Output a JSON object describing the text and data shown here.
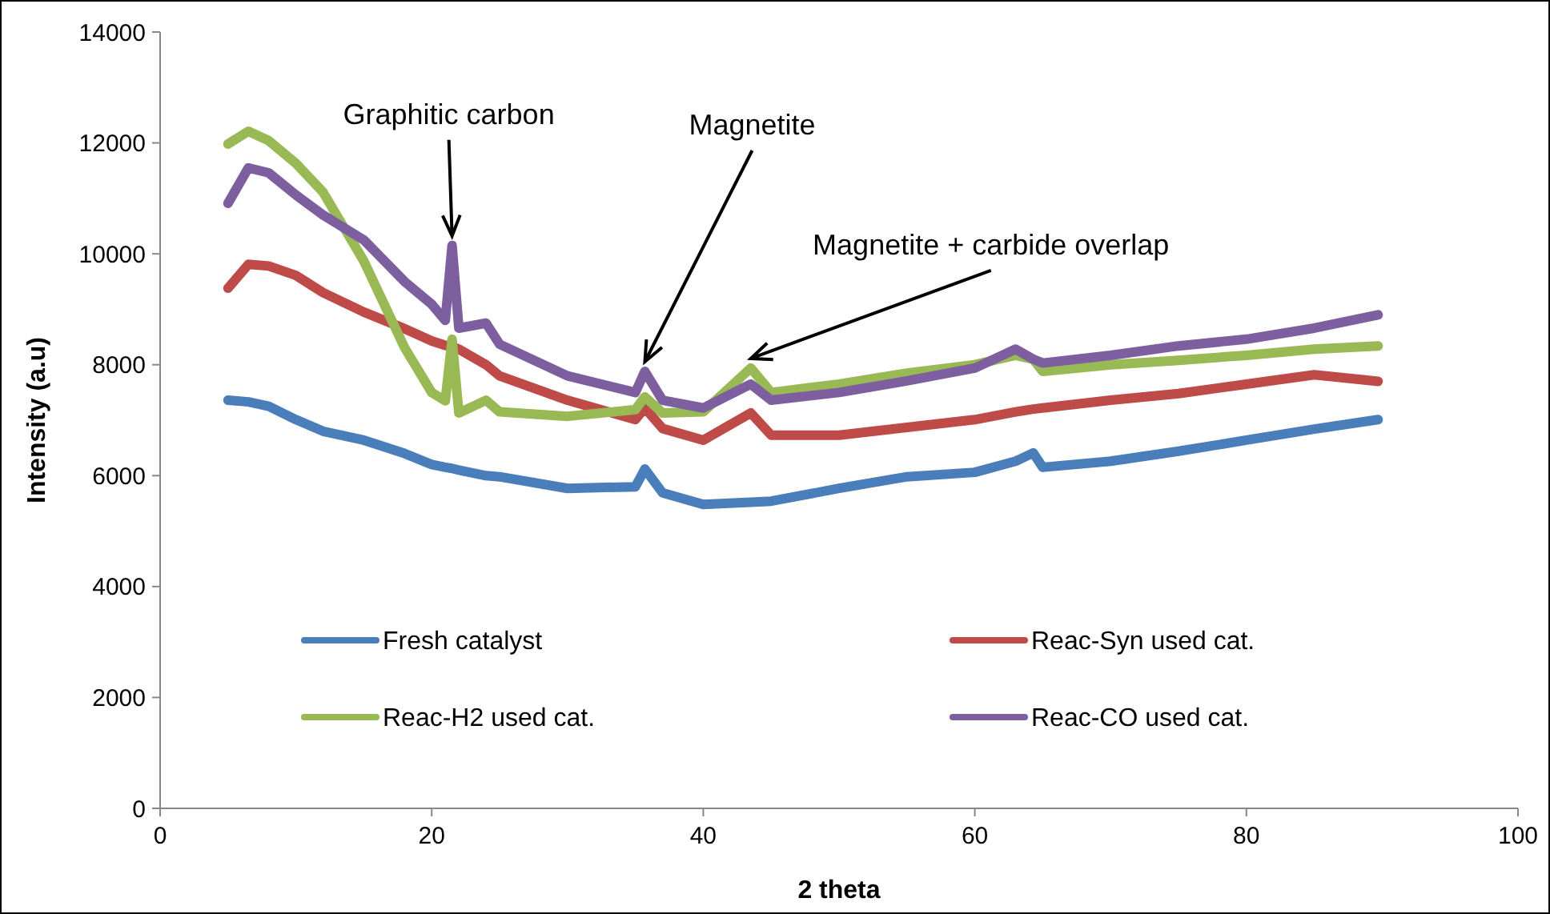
{
  "chart_data": {
    "type": "line",
    "xlabel": "2 theta",
    "ylabel": "Intensity (a.u)",
    "xlim": [
      0,
      100
    ],
    "xticks": [
      0,
      20,
      40,
      60,
      80,
      100
    ],
    "ylim": [
      0,
      14000
    ],
    "yticks": [
      0,
      2000,
      4000,
      6000,
      8000,
      10000,
      12000,
      14000
    ],
    "grid": false,
    "legend": "bottom",
    "marker": "none",
    "line_style": "solid",
    "x": [
      5,
      6.5,
      8,
      10,
      12,
      15,
      18,
      20,
      21,
      21.5,
      22,
      24,
      25,
      30,
      35,
      35.7,
      37,
      40,
      43.5,
      45,
      50,
      55,
      60,
      63,
      64.3,
      65,
      70,
      75,
      80,
      85,
      89.7
    ],
    "series": [
      {
        "name": "Fresh catalyst",
        "color": "#4a7ebb",
        "values": [
          7360,
          7330,
          7250,
          7010,
          6800,
          6640,
          6400,
          6200,
          6150,
          6130,
          6100,
          6000,
          5980,
          5770,
          5800,
          6120,
          5690,
          5480,
          5520,
          5540,
          5770,
          5980,
          6060,
          6260,
          6410,
          6150,
          6260,
          6440,
          6640,
          6840,
          7010
        ]
      },
      {
        "name": "Reac-Syn used cat.",
        "color": "#be4b48",
        "values": [
          9380,
          9810,
          9780,
          9610,
          9300,
          8950,
          8650,
          8430,
          8350,
          8330,
          8280,
          8000,
          7800,
          7360,
          7010,
          7220,
          6850,
          6640,
          7130,
          6730,
          6730,
          6870,
          7010,
          7150,
          7200,
          7220,
          7360,
          7480,
          7650,
          7820,
          7700
        ]
      },
      {
        "name": "Reac-H2 used cat.",
        "color": "#98b954",
        "values": [
          11980,
          12210,
          12040,
          11630,
          11110,
          9870,
          8310,
          7500,
          7350,
          8460,
          7130,
          7360,
          7150,
          7070,
          7190,
          7420,
          7130,
          7150,
          7940,
          7500,
          7650,
          7850,
          8000,
          8170,
          8100,
          7880,
          8000,
          8080,
          8170,
          8280,
          8340
        ]
      },
      {
        "name": "Reac-CO used cat.",
        "color": "#7d5fa0",
        "values": [
          10910,
          11550,
          11460,
          11060,
          10700,
          10250,
          9500,
          9090,
          8800,
          10150,
          8660,
          8750,
          8370,
          7800,
          7500,
          7880,
          7360,
          7220,
          7650,
          7360,
          7500,
          7710,
          7940,
          8280,
          8100,
          8030,
          8170,
          8340,
          8460,
          8660,
          8900
        ]
      }
    ],
    "annotations": [
      {
        "text": "Graphitic carbon",
        "x": 21.5,
        "y": 10150
      },
      {
        "text": "Magnetite",
        "x": 35.7,
        "y": 7880
      },
      {
        "text": "Magnetite + carbide overlap",
        "x": 43.5,
        "y": 7940
      }
    ]
  }
}
